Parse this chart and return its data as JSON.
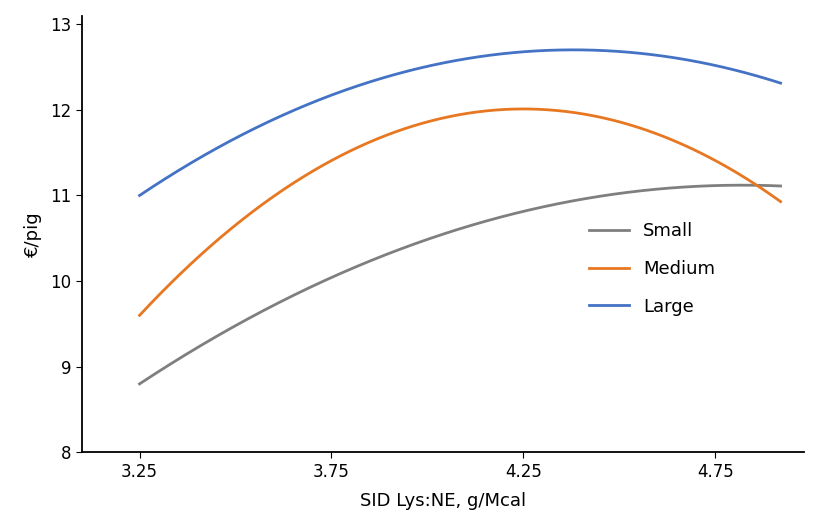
{
  "xlabel": "SID Lys:NE, g/Mcal",
  "ylabel": "€/pig",
  "xlim": [
    3.1,
    4.98
  ],
  "ylim": [
    8.0,
    13.1
  ],
  "xticks": [
    3.25,
    3.75,
    4.25,
    4.75
  ],
  "yticks": [
    8,
    9,
    10,
    11,
    12,
    13
  ],
  "curves": [
    {
      "label": "Small",
      "color": "#7f7f7f",
      "peak_x": 4.82,
      "peak_y": 11.12,
      "anchor_x": 3.25,
      "anchor_y": 8.8,
      "x_start": 3.25,
      "x_end": 4.92
    },
    {
      "label": "Medium",
      "color": "#E87722",
      "peak_x": 4.25,
      "peak_y": 12.01,
      "anchor_x": 3.25,
      "anchor_y": 9.6,
      "x_start": 3.25,
      "x_end": 4.92
    },
    {
      "label": "Large",
      "color": "#4472C4",
      "peak_x": 4.38,
      "peak_y": 12.7,
      "anchor_x": 3.25,
      "anchor_y": 11.0,
      "x_start": 3.25,
      "x_end": 4.92
    }
  ],
  "legend_fontsize": 13,
  "axis_fontsize": 13,
  "tick_fontsize": 12,
  "linewidth": 2.0,
  "background_color": "#ffffff",
  "fig_width": 8.2,
  "fig_height": 5.2
}
